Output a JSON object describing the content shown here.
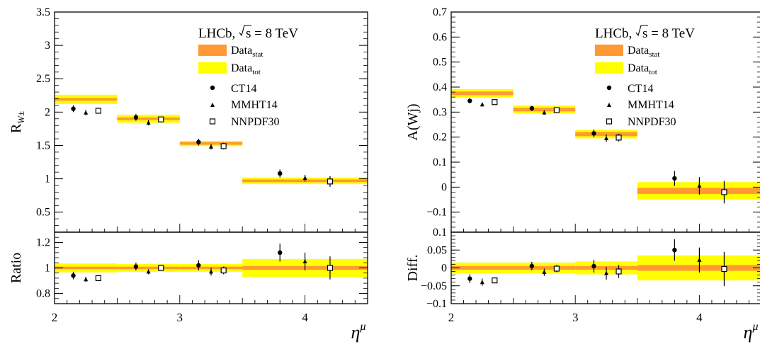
{
  "colors": {
    "stat": "#ff9933",
    "tot": "#ffff00",
    "frame": "#000000",
    "marker": "#000000"
  },
  "chart_data": [
    {
      "type": "scatter",
      "panel": "left",
      "experiment_label": "LHCb,",
      "energy_label": "s = 8 TeV",
      "legend_placement": "top-right",
      "legend": {
        "stat": "Data_stat",
        "tot": "Data_tot"
      },
      "xlabel": "η^μ",
      "xlim": [
        2,
        4.5
      ],
      "x_ticks": [
        "2",
        "3",
        "4"
      ],
      "x_bins": [
        [
          2.0,
          2.5
        ],
        [
          2.5,
          3.0
        ],
        [
          3.0,
          3.5
        ],
        [
          3.5,
          4.5
        ]
      ],
      "top": {
        "ylabel": "R_{W±}",
        "ylim": [
          0.2,
          3.5
        ],
        "y_ticks": [
          "0.5",
          "1",
          "1.5",
          "2",
          "2.5",
          "3",
          "3.5"
        ],
        "data": {
          "values": [
            2.19,
            1.9,
            1.53,
            0.97
          ],
          "stat_err": [
            0.02,
            0.02,
            0.02,
            0.02
          ],
          "tot_err": [
            0.07,
            0.06,
            0.04,
            0.05
          ]
        },
        "series": [
          {
            "name": "CT14",
            "marker": "circle",
            "x": [
              2.15,
              2.65,
              3.15,
              3.8
            ],
            "values": [
              2.05,
              1.92,
              1.55,
              1.08
            ],
            "errors": [
              0.05,
              0.05,
              0.05,
              0.06
            ]
          },
          {
            "name": "MMHT14",
            "marker": "triangle",
            "x": [
              2.25,
              2.75,
              3.25,
              4.0
            ],
            "values": [
              1.99,
              1.84,
              1.48,
              1.01
            ],
            "errors": [
              0.04,
              0.04,
              0.04,
              0.05
            ]
          },
          {
            "name": "NNPDF30",
            "marker": "open-square",
            "x": [
              2.35,
              2.85,
              3.35,
              4.2
            ],
            "values": [
              2.02,
              1.89,
              1.49,
              0.96
            ],
            "errors": [
              0.03,
              0.04,
              0.05,
              0.08
            ]
          }
        ]
      },
      "bottom": {
        "ylabel": "Ratio",
        "ylim": [
          0.72,
          1.28
        ],
        "y_ticks": [
          "0.8",
          "1",
          "1.2"
        ],
        "data": {
          "values": [
            1.0,
            1.0,
            1.0,
            1.0
          ],
          "stat_err": [
            0.01,
            0.01,
            0.01,
            0.015
          ],
          "tot_err": [
            0.035,
            0.03,
            0.03,
            0.07
          ]
        },
        "series": [
          {
            "name": "CT14",
            "x": [
              2.15,
              2.65,
              3.15,
              3.8
            ],
            "values": [
              0.94,
              1.01,
              1.02,
              1.12
            ],
            "errors": [
              0.03,
              0.03,
              0.04,
              0.07
            ]
          },
          {
            "name": "MMHT14",
            "x": [
              2.25,
              2.75,
              3.25,
              4.0
            ],
            "values": [
              0.91,
              0.97,
              0.97,
              1.05
            ],
            "errors": [
              0.02,
              0.02,
              0.03,
              0.07
            ]
          },
          {
            "name": "NNPDF30",
            "x": [
              2.35,
              2.85,
              3.35,
              4.2
            ],
            "values": [
              0.92,
              1.0,
              0.98,
              1.0
            ],
            "errors": [
              0.02,
              0.02,
              0.03,
              0.09
            ]
          }
        ]
      }
    },
    {
      "type": "scatter",
      "panel": "right",
      "experiment_label": "LHCb,",
      "energy_label": "s = 8 TeV",
      "legend_placement": "top-right",
      "legend": {
        "stat": "Data_stat",
        "tot": "Data_tot"
      },
      "xlabel": "η^μ",
      "xlim": [
        2,
        4.5
      ],
      "x_ticks": [
        "2",
        "3",
        "4"
      ],
      "x_bins": [
        [
          2.0,
          2.5
        ],
        [
          2.5,
          3.0
        ],
        [
          3.0,
          3.5
        ],
        [
          3.5,
          4.5
        ]
      ],
      "top": {
        "ylabel": "A(Wj)",
        "ylim": [
          -0.18,
          0.7
        ],
        "y_ticks": [
          "−0.1",
          "0",
          "0.1",
          "0.2",
          "0.3",
          "0.4",
          "0.5",
          "0.6",
          "0.7"
        ],
        "data": {
          "values": [
            0.375,
            0.31,
            0.212,
            -0.015
          ],
          "stat_err": [
            0.007,
            0.007,
            0.008,
            0.012
          ],
          "tot_err": [
            0.017,
            0.016,
            0.017,
            0.035
          ]
        },
        "series": [
          {
            "name": "CT14",
            "marker": "circle",
            "x": [
              2.15,
              2.65,
              3.15,
              3.8
            ],
            "values": [
              0.345,
              0.315,
              0.215,
              0.035
            ],
            "errors": [
              0.01,
              0.01,
              0.015,
              0.03
            ]
          },
          {
            "name": "MMHT14",
            "marker": "triangle",
            "x": [
              2.25,
              2.75,
              3.25,
              4.0
            ],
            "values": [
              0.33,
              0.298,
              0.195,
              0.005
            ],
            "errors": [
              0.008,
              0.008,
              0.015,
              0.035
            ]
          },
          {
            "name": "NNPDF30",
            "marker": "open-square",
            "x": [
              2.35,
              2.85,
              3.35,
              4.2
            ],
            "values": [
              0.34,
              0.308,
              0.198,
              -0.02
            ],
            "errors": [
              0.007,
              0.008,
              0.015,
              0.045
            ]
          }
        ]
      },
      "bottom": {
        "ylabel": "Diff.",
        "ylim": [
          -0.1,
          0.1
        ],
        "y_ticks": [
          "−0.1",
          "−0.05",
          "0",
          "0.05",
          "0.1"
        ],
        "data": {
          "values": [
            0.0,
            0.0,
            0.0,
            0.0
          ],
          "stat_err": [
            0.005,
            0.005,
            0.005,
            0.008
          ],
          "tot_err": [
            0.015,
            0.015,
            0.018,
            0.035
          ]
        },
        "series": [
          {
            "name": "CT14",
            "x": [
              2.15,
              2.65,
              3.15,
              3.8
            ],
            "values": [
              -0.03,
              0.005,
              0.005,
              0.05
            ],
            "errors": [
              0.012,
              0.012,
              0.018,
              0.03
            ]
          },
          {
            "name": "MMHT14",
            "x": [
              2.25,
              2.75,
              3.25,
              4.0
            ],
            "values": [
              -0.04,
              -0.012,
              -0.015,
              0.022
            ],
            "errors": [
              0.01,
              0.01,
              0.018,
              0.035
            ]
          },
          {
            "name": "NNPDF30",
            "x": [
              2.35,
              2.85,
              3.35,
              4.2
            ],
            "values": [
              -0.035,
              -0.002,
              -0.01,
              -0.003
            ],
            "errors": [
              0.008,
              0.01,
              0.018,
              0.048
            ]
          }
        ]
      }
    }
  ]
}
